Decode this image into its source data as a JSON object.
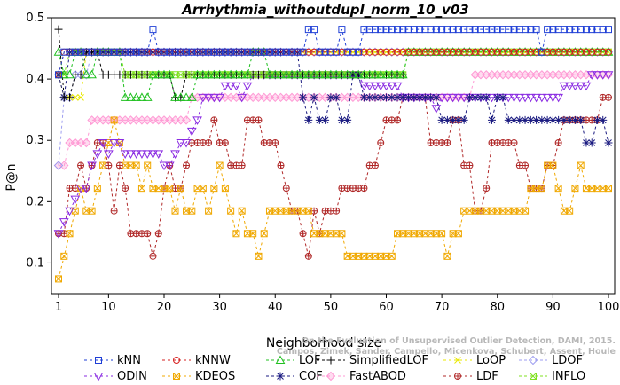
{
  "chart_data": {
    "type": "line",
    "title": "Arrhythmia_withoutdupl_norm_10_v03",
    "xlabel": "Neighborhood size",
    "ylabel": "P@n",
    "xlim": [
      1,
      100
    ],
    "ylim": [
      0.05,
      0.5
    ],
    "xticks": [
      1,
      10,
      20,
      30,
      40,
      50,
      60,
      70,
      80,
      90,
      100
    ],
    "yticks": [
      0.1,
      0.2,
      0.3,
      0.4,
      0.5
    ],
    "grid": false,
    "legend_position": "bottom",
    "watermark": [
      "Campos, Zimek, Sander, Campello, Micenkova, Schubert, Assent, Houle",
      "On the Evaluation of Unsupervised Outlier Detection, DAMI, 2015."
    ],
    "series": [
      {
        "name": "kNN",
        "color": "#1f3fd6",
        "marker": "square",
        "segments": [
          {
            "from": 1,
            "to": 1,
            "value": 0.407
          },
          {
            "from": 2,
            "to": 17,
            "value": 0.444
          },
          {
            "from": 18,
            "to": 18,
            "value": 0.481
          },
          {
            "from": 19,
            "to": 45,
            "value": 0.444
          },
          {
            "from": 46,
            "to": 47,
            "value": 0.481
          },
          {
            "from": 48,
            "to": 51,
            "value": 0.444
          },
          {
            "from": 52,
            "to": 52,
            "value": 0.481
          },
          {
            "from": 53,
            "to": 55,
            "value": 0.444
          },
          {
            "from": 56,
            "to": 87,
            "value": 0.481
          },
          {
            "from": 88,
            "to": 88,
            "value": 0.444
          },
          {
            "from": 89,
            "to": 100,
            "value": 0.481
          }
        ]
      },
      {
        "name": "kNNW",
        "color": "#d62020",
        "marker": "circle",
        "segments": [
          {
            "from": 1,
            "to": 1,
            "value": 0.407
          },
          {
            "from": 2,
            "to": 100,
            "value": 0.444
          }
        ]
      },
      {
        "name": "LOF",
        "color": "#20c020",
        "marker": "triangle-up",
        "segments": [
          {
            "from": 1,
            "to": 1,
            "value": 0.444
          },
          {
            "from": 2,
            "to": 3,
            "value": 0.407
          },
          {
            "from": 4,
            "to": 5,
            "value": 0.444
          },
          {
            "from": 6,
            "to": 7,
            "value": 0.407
          },
          {
            "from": 8,
            "to": 12,
            "value": 0.444
          },
          {
            "from": 13,
            "to": 17,
            "value": 0.37
          },
          {
            "from": 18,
            "to": 21,
            "value": 0.407
          },
          {
            "from": 22,
            "to": 25,
            "value": 0.37
          },
          {
            "from": 26,
            "to": 35,
            "value": 0.407
          },
          {
            "from": 36,
            "to": 38,
            "value": 0.444
          },
          {
            "from": 39,
            "to": 63,
            "value": 0.407
          },
          {
            "from": 64,
            "to": 100,
            "value": 0.444
          }
        ]
      },
      {
        "name": "SimplifiedLOF",
        "color": "#000000",
        "marker": "plus",
        "segments": [
          {
            "from": 1,
            "to": 1,
            "value": 0.481
          },
          {
            "from": 2,
            "to": 3,
            "value": 0.37
          },
          {
            "from": 4,
            "to": 5,
            "value": 0.407
          },
          {
            "from": 6,
            "to": 8,
            "value": 0.444
          },
          {
            "from": 9,
            "to": 21,
            "value": 0.407
          },
          {
            "from": 22,
            "to": 23,
            "value": 0.37
          },
          {
            "from": 24,
            "to": 63,
            "value": 0.407
          }
        ]
      },
      {
        "name": "LoOP",
        "color": "#e8e800",
        "marker": "cross",
        "segments": [
          {
            "from": 1,
            "to": 1,
            "value": 0.407
          },
          {
            "from": 2,
            "to": 5,
            "value": 0.37
          },
          {
            "from": 6,
            "to": 100,
            "value": 0.444
          }
        ]
      },
      {
        "name": "LDOF",
        "color": "#9e9ef0",
        "marker": "diamond",
        "segments": [
          {
            "from": 1,
            "to": 1,
            "value": 0.259
          },
          {
            "from": 2,
            "to": 3,
            "value": 0.37
          },
          {
            "from": 4,
            "to": 6,
            "value": 0.407
          },
          {
            "from": 7,
            "to": 100,
            "value": 0.444
          }
        ]
      },
      {
        "name": "ODIN",
        "color": "#8a2be2",
        "marker": "triangle-down",
        "values": [
          0.148,
          0.167,
          0.185,
          0.204,
          0.222,
          0.222,
          0.259,
          0.278,
          0.296,
          0.278,
          0.296,
          0.296,
          0.278,
          0.278,
          0.278,
          0.278,
          0.278,
          0.278,
          0.278,
          0.259,
          0.259,
          0.278,
          0.296,
          0.296,
          0.315,
          0.333,
          0.37,
          0.37,
          0.37,
          0.37,
          0.389,
          0.389,
          0.389,
          0.37,
          0.389,
          0.407,
          0.407,
          0.407,
          0.407,
          0.407,
          0.407,
          0.407,
          0.407,
          0.407,
          0.407,
          0.407,
          0.407,
          0.407,
          0.407,
          0.407,
          0.407,
          0.407,
          0.407,
          0.407,
          0.407,
          0.389,
          0.389,
          0.389,
          0.389,
          0.389,
          0.389,
          0.389,
          0.37,
          0.37,
          0.37,
          0.37,
          0.37,
          0.37,
          0.352,
          0.37,
          0.37,
          0.37,
          0.37,
          0.37,
          0.37,
          0.37,
          0.37,
          0.37,
          0.37,
          0.37,
          0.37,
          0.37,
          0.37,
          0.37,
          0.37,
          0.37,
          0.37,
          0.37,
          0.37,
          0.37,
          0.37,
          0.389,
          0.389,
          0.389,
          0.389,
          0.389,
          0.407,
          0.407,
          0.407,
          0.407
        ]
      },
      {
        "name": "KDEOS",
        "color": "#f0a800",
        "marker": "square-x",
        "values": [
          0.074,
          0.111,
          0.148,
          0.185,
          0.222,
          0.185,
          0.185,
          0.222,
          0.259,
          0.296,
          0.333,
          0.296,
          0.259,
          0.259,
          0.259,
          0.222,
          0.259,
          0.222,
          0.222,
          0.222,
          0.222,
          0.185,
          0.222,
          0.185,
          0.185,
          0.222,
          0.222,
          0.185,
          0.222,
          0.259,
          0.222,
          0.185,
          0.148,
          0.185,
          0.148,
          0.148,
          0.111,
          0.148,
          0.185,
          0.185,
          0.185,
          0.185,
          0.185,
          0.185,
          0.185,
          0.185,
          0.148,
          0.148,
          0.148,
          0.148,
          0.148,
          0.148,
          0.111,
          0.111,
          0.111,
          0.111,
          0.111,
          0.111,
          0.111,
          0.111,
          0.111,
          0.148,
          0.148,
          0.148,
          0.148,
          0.148,
          0.148,
          0.148,
          0.148,
          0.148,
          0.111,
          0.148,
          0.148,
          0.185,
          0.185,
          0.185,
          0.185,
          0.185,
          0.185,
          0.185,
          0.185,
          0.185,
          0.185,
          0.185,
          0.185,
          0.222,
          0.222,
          0.222,
          0.259,
          0.259,
          0.222,
          0.185,
          0.185,
          0.222,
          0.259,
          0.222,
          0.222,
          0.222,
          0.222,
          0.222
        ]
      },
      {
        "name": "COF",
        "color": "#1a1a80",
        "marker": "asterisk",
        "segments": [
          {
            "from": 1,
            "to": 1,
            "value": 0.407
          },
          {
            "from": 2,
            "to": 2,
            "value": 0.37
          },
          {
            "from": 3,
            "to": 44,
            "value": 0.444
          },
          {
            "from": 45,
            "to": 45,
            "value": 0.37
          },
          {
            "from": 46,
            "to": 46,
            "value": 0.333
          },
          {
            "from": 47,
            "to": 47,
            "value": 0.37
          },
          {
            "from": 48,
            "to": 49,
            "value": 0.333
          },
          {
            "from": 50,
            "to": 51,
            "value": 0.37
          },
          {
            "from": 52,
            "to": 53,
            "value": 0.333
          },
          {
            "from": 54,
            "to": 55,
            "value": 0.407
          },
          {
            "from": 56,
            "to": 69,
            "value": 0.37
          },
          {
            "from": 70,
            "to": 74,
            "value": 0.333
          },
          {
            "from": 75,
            "to": 75,
            "value": 0.37
          },
          {
            "from": 76,
            "to": 78,
            "value": 0.37
          },
          {
            "from": 79,
            "to": 79,
            "value": 0.333
          },
          {
            "from": 80,
            "to": 81,
            "value": 0.37
          },
          {
            "from": 82,
            "to": 95,
            "value": 0.333
          },
          {
            "from": 96,
            "to": 97,
            "value": 0.296
          },
          {
            "from": 98,
            "to": 99,
            "value": 0.333
          },
          {
            "from": 100,
            "to": 100,
            "value": 0.296
          }
        ]
      },
      {
        "name": "FastABOD",
        "color": "#ff9ad5",
        "marker": "diamond-filled",
        "values": [
          0.259,
          0.259,
          0.296,
          0.296,
          0.296,
          0.296,
          0.333,
          0.333,
          0.333,
          0.333,
          0.333,
          0.333,
          0.333,
          0.333,
          0.333,
          0.333,
          0.333,
          0.333,
          0.333,
          0.333,
          0.333,
          0.333,
          0.333,
          0.333,
          0.37,
          0.37,
          0.37,
          0.37,
          0.37,
          0.37,
          0.37,
          0.37,
          0.37,
          0.37,
          0.37,
          0.37,
          0.37,
          0.37,
          0.37,
          0.37,
          0.37,
          0.37,
          0.37,
          0.37,
          0.37,
          0.37,
          0.37,
          0.37,
          0.37,
          0.37,
          0.37,
          0.37,
          0.37,
          0.37,
          0.37,
          0.37,
          0.37,
          0.37,
          0.37,
          0.37,
          0.37,
          0.37,
          0.37,
          0.37,
          0.37,
          0.37,
          0.37,
          0.37,
          0.37,
          0.37,
          0.37,
          0.37,
          0.37,
          0.37,
          0.37,
          0.407,
          0.407,
          0.407,
          0.407,
          0.407,
          0.407,
          0.407,
          0.407,
          0.407,
          0.407,
          0.407,
          0.407,
          0.407,
          0.407,
          0.407,
          0.407,
          0.407,
          0.407,
          0.407,
          0.407,
          0.407,
          0.407,
          0.407,
          0.407,
          0.407
        ]
      },
      {
        "name": "LDF",
        "color": "#b02828",
        "marker": "circle-plus",
        "values": [
          0.148,
          0.148,
          0.222,
          0.222,
          0.259,
          0.222,
          0.259,
          0.296,
          0.296,
          0.259,
          0.185,
          0.259,
          0.222,
          0.148,
          0.148,
          0.148,
          0.148,
          0.111,
          0.148,
          0.222,
          0.259,
          0.222,
          0.222,
          0.259,
          0.296,
          0.296,
          0.296,
          0.296,
          0.333,
          0.296,
          0.296,
          0.259,
          0.259,
          0.259,
          0.333,
          0.333,
          0.333,
          0.296,
          0.296,
          0.296,
          0.259,
          0.222,
          0.185,
          0.185,
          0.148,
          0.111,
          0.185,
          0.148,
          0.185,
          0.185,
          0.185,
          0.222,
          0.222,
          0.222,
          0.222,
          0.222,
          0.259,
          0.259,
          0.296,
          0.333,
          0.333,
          0.333,
          0.37,
          0.37,
          0.37,
          0.37,
          0.37,
          0.296,
          0.296,
          0.296,
          0.296,
          0.333,
          0.333,
          0.259,
          0.259,
          0.185,
          0.185,
          0.222,
          0.296,
          0.296,
          0.296,
          0.296,
          0.296,
          0.259,
          0.259,
          0.222,
          0.222,
          0.222,
          0.259,
          0.259,
          0.296,
          0.333,
          0.333,
          0.333,
          0.333,
          0.333,
          0.333,
          0.333,
          0.37,
          0.37
        ]
      },
      {
        "name": "INFLO",
        "color": "#80e020",
        "marker": "square-x",
        "segments": [
          {
            "from": 1,
            "to": 2,
            "value": 0.407
          },
          {
            "from": 3,
            "to": 12,
            "value": 0.444
          },
          {
            "from": 13,
            "to": 63,
            "value": 0.407
          },
          {
            "from": 64,
            "to": 100,
            "value": 0.444
          }
        ]
      }
    ]
  }
}
